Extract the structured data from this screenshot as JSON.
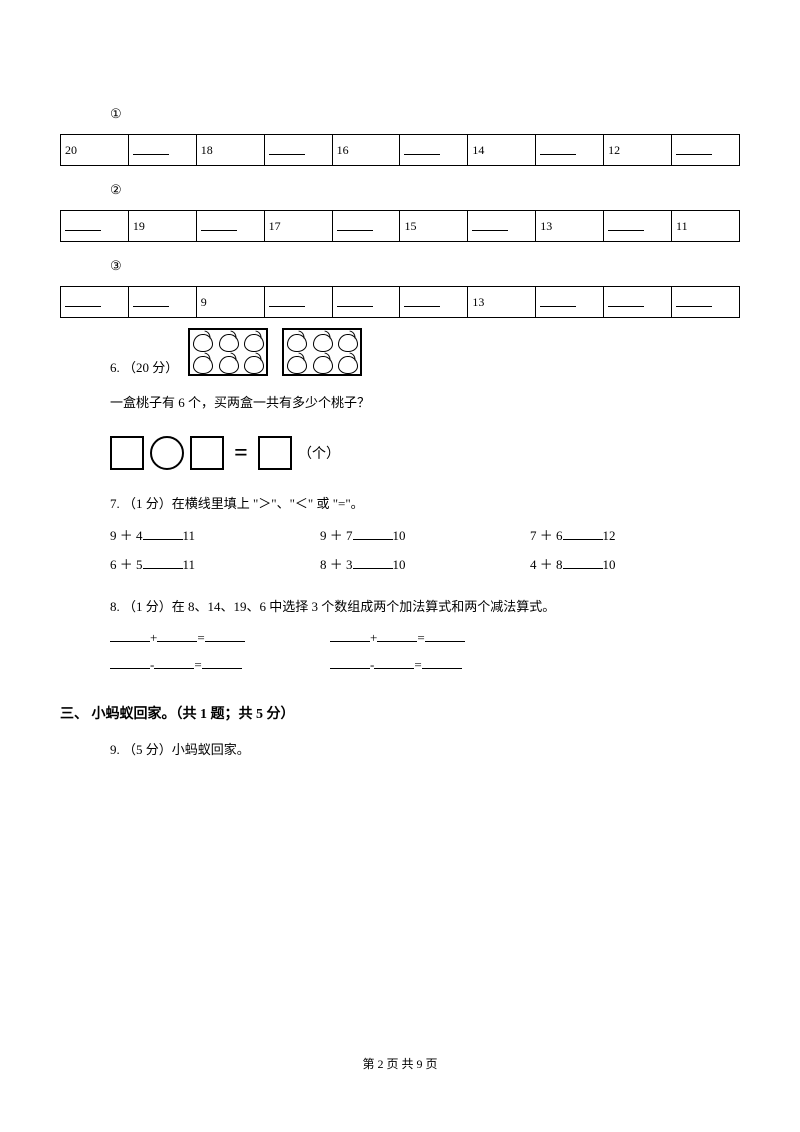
{
  "markers": {
    "m1": "①",
    "m2": "②",
    "m3": "③"
  },
  "tables": {
    "t1": {
      "cells": [
        "20",
        "",
        "18",
        "",
        "16",
        "",
        "14",
        "",
        "12",
        ""
      ]
    },
    "t2": {
      "cells": [
        "",
        "19",
        "",
        "17",
        "",
        "15",
        "",
        "13",
        "",
        "11"
      ]
    },
    "t3": {
      "cells": [
        "",
        "",
        "9",
        "",
        "",
        "",
        "13",
        "",
        "",
        ""
      ]
    }
  },
  "q6": {
    "heading": "6. （20 分）",
    "text": "一盒桃子有 6 个，买两盒一共有多少个桃子？",
    "unit": "（个）"
  },
  "q7": {
    "heading": "7. （1 分）在横线里填上 \"＞\"、\"＜\" 或 \"=\"。",
    "row1": [
      {
        "l": "9 ＋ 4",
        "r": "11"
      },
      {
        "l": "9 ＋ 7",
        "r": "10"
      },
      {
        "l": "7 ＋ 6",
        "r": "12"
      }
    ],
    "row2": [
      {
        "l": "6 ＋ 5",
        "r": "11"
      },
      {
        "l": "8 ＋ 3",
        "r": "10"
      },
      {
        "l": "4 ＋ 8",
        "r": "10"
      }
    ]
  },
  "q8": {
    "heading": "8. （1 分）在 8、14、19、6 中选择 3 个数组成两个加法算式和两个减法算式。",
    "plus": "+",
    "minus": "-",
    "eq": "="
  },
  "section3": {
    "title": "三、 小蚂蚁回家。（共 1 题；共 5 分）"
  },
  "q9": {
    "heading": "9. （5 分）小蚂蚁回家。"
  },
  "footer": {
    "text": "第 2 页 共 9 页"
  }
}
